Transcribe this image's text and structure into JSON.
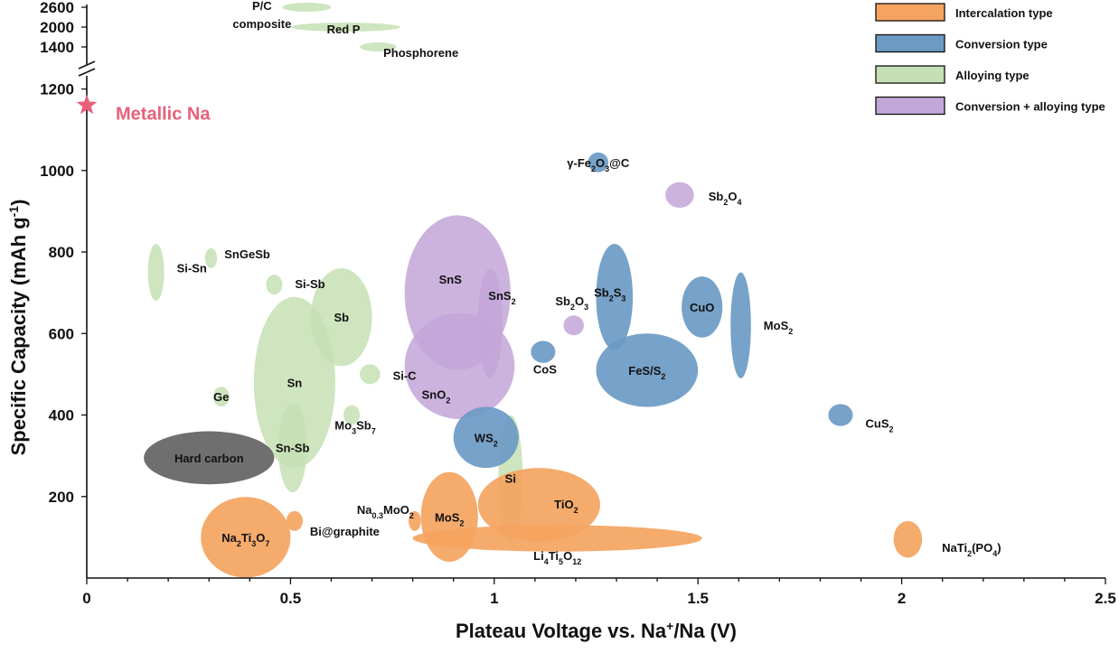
{
  "chart_data": {
    "type": "scatter",
    "subtype": "ellipse-region-map",
    "xlabel": {
      "pre": "Plateau Voltage vs. Na",
      "sup": "+",
      "post": "/Na (V)"
    },
    "ylabel": {
      "pre": "Specific Capacity (mAh g",
      "sup": "-1",
      "post": ")"
    },
    "xlim": [
      0,
      2.5
    ],
    "x_ticks": [
      0,
      0.5,
      1,
      1.5,
      2,
      2.5
    ],
    "x_tick_labels": [
      "0",
      "0.5",
      "1",
      "1.5",
      "2",
      "2.5"
    ],
    "x_minor_step": 0.1,
    "ylim": [
      0,
      1230
    ],
    "y_ticks": [
      200,
      400,
      600,
      800,
      1000,
      1200
    ],
    "y_tick_labels": [
      "200",
      "400",
      "600",
      "800",
      "1000",
      "1200"
    ],
    "y_break": {
      "lower_max": 1230,
      "upper_ticks": [
        1400,
        2000,
        2600
      ],
      "upper_tick_labels": [
        "1400",
        "2000",
        "2600"
      ]
    },
    "grid": false,
    "legend_position": "top-right",
    "colors": {
      "intercalation": "#f4a460",
      "conversion": "#6b9ac4",
      "alloying": "#c5e0b4",
      "conversion_alloying": "#c3a6d8",
      "carbon": "#6f6f6f",
      "metallic": "#e8607a"
    },
    "legend": [
      {
        "key": "intercalation",
        "label": "Intercalation type"
      },
      {
        "key": "conversion",
        "label": "Conversion type"
      },
      {
        "key": "alloying",
        "label": "Alloying type"
      },
      {
        "key": "conversion_alloying",
        "label": "Conversion + alloying type"
      }
    ],
    "marker": {
      "label": "Metallic Na",
      "x": 0.0,
      "y": 1160
    },
    "upper_regions": [
      {
        "type": "alloying",
        "x_range": [
          0.48,
          0.6
        ],
        "y_center": 2600,
        "label": [
          "P/C",
          "composite"
        ]
      },
      {
        "type": "alloying",
        "x_range": [
          0.5,
          0.77
        ],
        "y_center": 2000,
        "label": [
          "Red P"
        ]
      },
      {
        "type": "alloying",
        "x_range": [
          0.67,
          0.76
        ],
        "y_center": 1400,
        "label": [
          "Phosphorene"
        ]
      }
    ],
    "regions": [
      {
        "type": "alloying",
        "x_range": [
          0.15,
          0.19
        ],
        "y_range": [
          680,
          820
        ],
        "label": "Si-Sn"
      },
      {
        "type": "alloying",
        "x_range": [
          0.29,
          0.32
        ],
        "y_center": 785,
        "label": "SnGeSb"
      },
      {
        "type": "alloying",
        "x_range": [
          0.44,
          0.48
        ],
        "y_center": 720,
        "label": "Si-Sb"
      },
      {
        "type": "alloying",
        "x_range": [
          0.55,
          0.7
        ],
        "y_range": [
          520,
          760
        ],
        "label": "Sb"
      },
      {
        "type": "alloying",
        "x_range": [
          0.41,
          0.61
        ],
        "y_range": [
          270,
          690
        ],
        "label": "Sn"
      },
      {
        "type": "alloying",
        "x_range": [
          0.31,
          0.35
        ],
        "y_center": 445,
        "label": "Ge"
      },
      {
        "type": "alloying",
        "x_range": [
          0.47,
          0.54
        ],
        "y_range": [
          210,
          430
        ],
        "label": "Sn-Sb"
      },
      {
        "type": "alloying",
        "x_range": [
          0.67,
          0.72
        ],
        "y_center": 500,
        "label": "Si-C"
      },
      {
        "type": "alloying",
        "x_range": [
          0.63,
          0.67
        ],
        "y_center": 400,
        "label": [
          "Mo",
          "3",
          "Sb",
          "7"
        ]
      },
      {
        "type": "alloying",
        "x_range": [
          1.01,
          1.07
        ],
        "y_range": [
          90,
          400
        ],
        "label": "Si"
      },
      {
        "type": "carbon",
        "x_range": [
          0.14,
          0.46
        ],
        "y_range": [
          230,
          360
        ],
        "label": "Hard carbon"
      },
      {
        "type": "conversion_alloying",
        "x_range": [
          0.78,
          1.04
        ],
        "y_range": [
          510,
          890
        ],
        "label": "SnS"
      },
      {
        "type": "conversion_alloying",
        "x_range": [
          0.96,
          1.02
        ],
        "y_range": [
          490,
          760
        ],
        "label": [
          "SnS",
          "2"
        ]
      },
      {
        "type": "conversion_alloying",
        "x_range": [
          0.78,
          1.05
        ],
        "y_range": [
          390,
          650
        ],
        "label": [
          "SnO",
          "2"
        ]
      },
      {
        "type": "conversion_alloying",
        "x_range": [
          1.17,
          1.22
        ],
        "y_center": 620,
        "label": [
          "Sb",
          "2",
          "O",
          "3"
        ]
      },
      {
        "type": "conversion_alloying",
        "x_range": [
          1.42,
          1.49
        ],
        "y_center": 940,
        "label": [
          "Sb",
          "2",
          "O",
          "4"
        ]
      },
      {
        "type": "conversion",
        "x_range": [
          1.23,
          1.28
        ],
        "y_center": 1020,
        "label": [
          "γ-Fe",
          "2",
          "O",
          "3",
          "@C"
        ]
      },
      {
        "type": "conversion",
        "x_range": [
          1.25,
          1.34
        ],
        "y_range": [
          560,
          820
        ],
        "label": [
          "Sb",
          "2",
          "S",
          "3"
        ]
      },
      {
        "type": "conversion",
        "x_range": [
          1.46,
          1.56
        ],
        "y_range": [
          590,
          740
        ],
        "label": "CuO"
      },
      {
        "type": "conversion",
        "x_range": [
          1.58,
          1.63
        ],
        "y_range": [
          490,
          750
        ],
        "label": [
          "MoS",
          "2"
        ]
      },
      {
        "type": "conversion",
        "x_range": [
          1.09,
          1.15
        ],
        "y_center": 555,
        "label": "CoS"
      },
      {
        "type": "conversion",
        "x_range": [
          1.25,
          1.5
        ],
        "y_range": [
          420,
          600
        ],
        "label": [
          "FeS/S",
          "2"
        ]
      },
      {
        "type": "conversion",
        "x_range": [
          0.9,
          1.06
        ],
        "y_range": [
          270,
          420
        ],
        "label": [
          "WS",
          "2"
        ]
      },
      {
        "type": "conversion",
        "x_range": [
          1.82,
          1.88
        ],
        "y_center": 400,
        "label": [
          "CuS",
          "2"
        ]
      },
      {
        "type": "intercalation",
        "x_range": [
          0.28,
          0.5
        ],
        "y_center": 100,
        "label": [
          "Na",
          "2",
          "Ti",
          "3",
          "O",
          "7"
        ]
      },
      {
        "type": "intercalation",
        "x_range": [
          0.49,
          0.53
        ],
        "y_center": 140,
        "label": "Bi@graphite"
      },
      {
        "type": "intercalation",
        "x_range": [
          0.79,
          0.82
        ],
        "y_center": 140,
        "label": [
          "Na",
          "0.3",
          "MoO",
          "2"
        ]
      },
      {
        "type": "intercalation",
        "x_range": [
          0.82,
          0.96
        ],
        "y_range": [
          40,
          260
        ],
        "label": [
          "MoS",
          "2"
        ]
      },
      {
        "type": "intercalation",
        "x_range": [
          0.96,
          1.26
        ],
        "y_range": [
          90,
          270
        ],
        "label": [
          "TiO",
          "2"
        ]
      },
      {
        "type": "intercalation",
        "x_range": [
          0.8,
          1.51
        ],
        "y_range": [
          65,
          130
        ],
        "label": [
          "Li",
          "4",
          "Ti",
          "5",
          "O",
          "12"
        ]
      },
      {
        "type": "intercalation",
        "x_range": [
          1.98,
          2.05
        ],
        "y_range": [
          50,
          140
        ],
        "label": [
          "NaTi",
          "2",
          "(PO",
          "4",
          ")"
        ]
      }
    ]
  }
}
